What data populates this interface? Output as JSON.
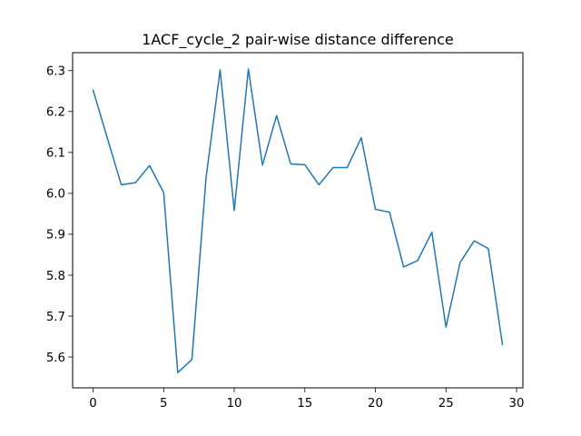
{
  "chart_data": {
    "type": "line",
    "title": "1ACF_cycle_2 pair-wise distance difference",
    "xlabel": "",
    "ylabel": "",
    "xlim": [
      -1.45,
      30.45
    ],
    "ylim": [
      5.5247,
      6.3438
    ],
    "x_ticks": [
      0,
      5,
      10,
      15,
      20,
      25,
      30
    ],
    "y_ticks": [
      5.6,
      5.7,
      5.8,
      5.9,
      6.0,
      6.1,
      6.2,
      6.3
    ],
    "x_tick_labels": [
      "0",
      "5",
      "10",
      "15",
      "20",
      "25",
      "30"
    ],
    "y_tick_labels": [
      "5.6",
      "5.7",
      "5.8",
      "5.9",
      "6.0",
      "6.1",
      "6.2",
      "6.3"
    ],
    "grid": false,
    "legend": "none",
    "series": [
      {
        "color": "#1f77b4",
        "x": [
          0,
          1,
          2,
          3,
          4,
          5,
          6,
          7,
          8,
          9,
          10,
          11,
          12,
          13,
          14,
          15,
          16,
          17,
          18,
          19,
          20,
          21,
          22,
          23,
          24,
          25,
          26,
          27,
          28,
          29
        ],
        "values": [
          6.252,
          6.136,
          6.021,
          6.026,
          6.068,
          6.002,
          5.562,
          5.594,
          6.037,
          6.302,
          5.958,
          6.304,
          6.069,
          6.19,
          6.072,
          6.07,
          6.021,
          6.063,
          6.063,
          6.136,
          5.961,
          5.954,
          5.82,
          5.836,
          5.905,
          5.673,
          5.831,
          5.884,
          5.865,
          5.631
        ]
      }
    ]
  }
}
